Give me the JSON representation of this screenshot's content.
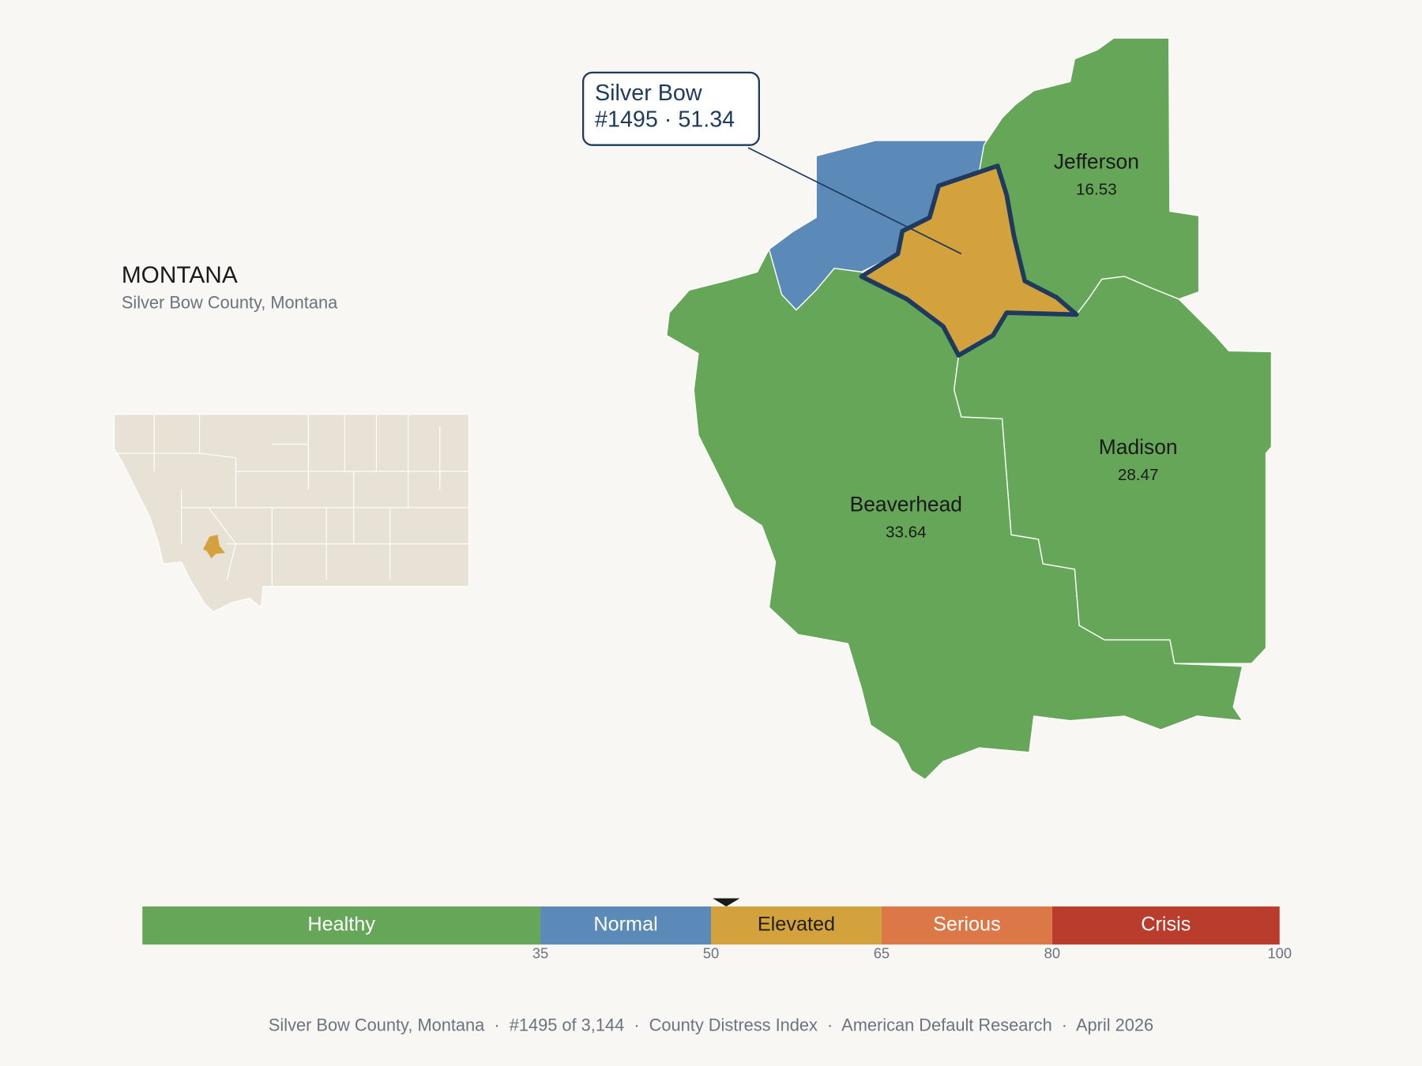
{
  "header": {
    "title": "MONTANA",
    "subtitle": "Silver Bow County, Montana"
  },
  "callout": {
    "name": "Silver Bow",
    "detail": "#1495 · 51.34",
    "score": 51.34
  },
  "counties": [
    {
      "name": "Jefferson",
      "value": 16.53
    },
    {
      "name": "Madison",
      "value": 28.47
    },
    {
      "name": "Beaverhead",
      "value": 33.64
    }
  ],
  "scale": {
    "xlim": [
      0,
      100
    ],
    "ticks": [
      35,
      50,
      65,
      80,
      100
    ],
    "bands": [
      {
        "label": "Healthy",
        "color": "#66a659",
        "text_color": "#ffffff"
      },
      {
        "label": "Normal",
        "color": "#5b89b8",
        "text_color": "#ffffff"
      },
      {
        "label": "Elevated",
        "color": "#d4a23c",
        "text_color": "#1f1f1f"
      },
      {
        "label": "Serious",
        "color": "#dc7848",
        "text_color": "#ffffff"
      },
      {
        "label": "Crisis",
        "color": "#b93c2c",
        "text_color": "#ffffff"
      }
    ]
  },
  "footer": "Silver Bow County, Montana  ·  #1495 of 3,144  ·  County Distress Index  ·  American Default Research  ·  April 2026"
}
